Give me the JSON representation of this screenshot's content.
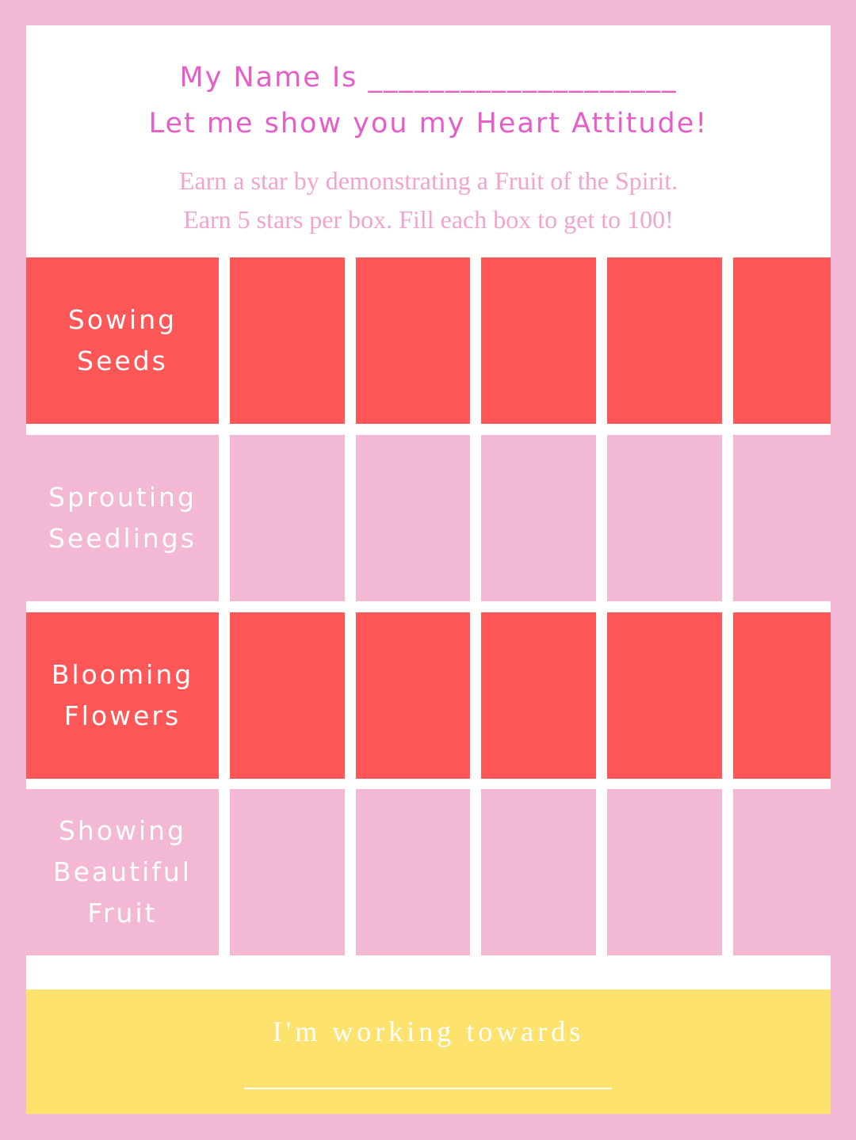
{
  "header": {
    "name_line": "My Name Is ____________________",
    "heart_line": "Let me show you my Heart Attitude!",
    "instruction_1": "Earn a star by demonstrating a Fruit of the Spirit.",
    "instruction_2": "Earn 5 stars per box. Fill each box to get to 100!"
  },
  "rows": [
    {
      "label": "Sowing\nSeeds",
      "style": "red",
      "boxes": 5
    },
    {
      "label": "Sprouting\nSeedlings",
      "style": "pink",
      "boxes": 5
    },
    {
      "label": "Blooming\nFlowers",
      "style": "red",
      "boxes": 5
    },
    {
      "label": "Showing\nBeautiful\nFruit",
      "style": "pink",
      "boxes": 5
    }
  ],
  "footer": {
    "goal_text": "I'm working towards",
    "goal_line": "_____________________________"
  },
  "colors": {
    "background": "#f2b8d4",
    "red": "#ff5757",
    "pink": "#f2b8d4",
    "yellow": "#fde26e",
    "title": "#e55ec8"
  }
}
